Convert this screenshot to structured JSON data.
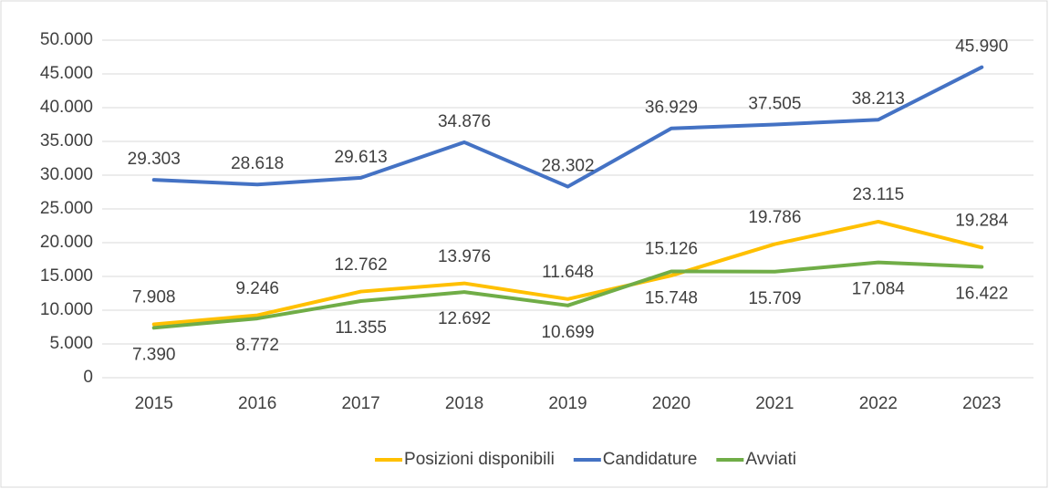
{
  "chart_data": {
    "type": "line",
    "categories": [
      "2015",
      "2016",
      "2017",
      "2018",
      "2019",
      "2020",
      "2021",
      "2022",
      "2023"
    ],
    "series": [
      {
        "name": "Posizioni disponibili",
        "color": "#FFC000",
        "values": [
          7908,
          9246,
          12762,
          13976,
          11648,
          15126,
          19786,
          23115,
          19284
        ],
        "value_labels": [
          "7.908",
          "9.246",
          "12.762",
          "13.976",
          "11.648",
          "15.126",
          "19.786",
          "23.115",
          "19.284"
        ]
      },
      {
        "name": "Candidature",
        "color": "#4472C4",
        "values": [
          29303,
          28618,
          29613,
          34876,
          28302,
          36929,
          37505,
          38213,
          45990
        ],
        "value_labels": [
          "29.303",
          "28.618",
          "29.613",
          "34.876",
          "28.302",
          "36.929",
          "37.505",
          "38.213",
          "45.990"
        ]
      },
      {
        "name": "Avviati",
        "color": "#70AD47",
        "values": [
          7390,
          8772,
          11355,
          12692,
          10699,
          15748,
          15709,
          17084,
          16422
        ],
        "value_labels": [
          "7.390",
          "8.772",
          "11.355",
          "12.692",
          "10.699",
          "15.748",
          "15.709",
          "17.084",
          "16.422"
        ]
      }
    ],
    "ylim": [
      0,
      50000
    ],
    "yticks": [
      0,
      {
        "value": 5000,
        "label": "5.000"
      },
      {
        "value": 10000,
        "label": "10.000"
      },
      {
        "value": 15000,
        "label": "15.000"
      },
      {
        "value": 20000,
        "label": "20.000"
      },
      {
        "value": 25000,
        "label": "25.000"
      },
      {
        "value": 30000,
        "label": "30.000"
      },
      {
        "value": 35000,
        "label": "35.000"
      },
      {
        "value": 40000,
        "label": "40.000"
      },
      {
        "value": 45000,
        "label": "45.000"
      },
      {
        "value": 50000,
        "label": "50.000"
      }
    ],
    "grid": true,
    "legend": "bottom"
  }
}
